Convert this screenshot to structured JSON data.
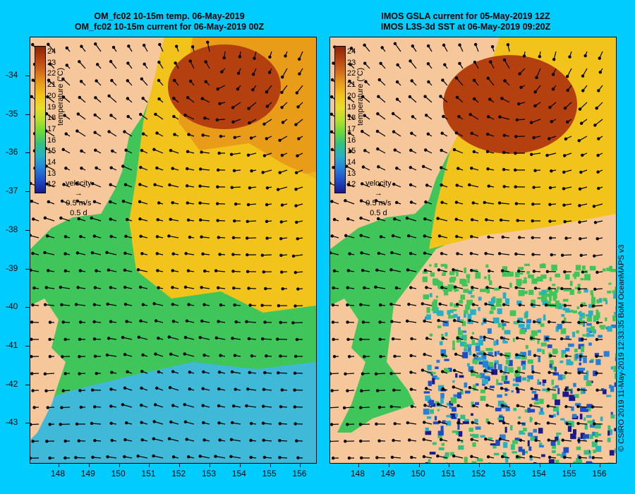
{
  "left_panel": {
    "title_line1": "OM_fc02 10-15m temp. 06-May-2019",
    "title_line2": "OM_fc02 10-15m current for 06-May-2019 00Z"
  },
  "right_panel": {
    "title_line1": "IMOS GSLA current for 05-May-2019 12Z",
    "title_line2": "IMOS L3S-3d SST at 06-May-2019 09:20Z"
  },
  "y_axis_ticks": [
    "-34",
    "-35",
    "-36",
    "-37",
    "-38",
    "-39",
    "-40",
    "-41",
    "-42",
    "-43"
  ],
  "x_axis_ticks": [
    "148",
    "149",
    "150",
    "151",
    "152",
    "153",
    "154",
    "155",
    "156"
  ],
  "colorbar": {
    "title": "temperature (°C)",
    "labels": [
      "24",
      "23",
      "22",
      "21",
      "20",
      "19",
      "18",
      "17",
      "16",
      "15",
      "14",
      "13",
      "12"
    ],
    "colors": [
      "#8b2500",
      "#b5400f",
      "#d06a1a",
      "#e89c18",
      "#f2c31a",
      "#e8dd2a",
      "#b6e02a",
      "#6cd83a",
      "#32c080",
      "#26b0c8",
      "#2680d8",
      "#1e4cc8",
      "#1a1a8a"
    ]
  },
  "velocity_legend": {
    "title": "velocity",
    "speed": "0.5 m/s",
    "duration": "0.5 d"
  },
  "credit": "© CSIRO 2019   11-May-2019 12:33:35 BoM OceanMAPS v3",
  "colors": {
    "background": "#00ccff",
    "land": "#f6c79a"
  }
}
